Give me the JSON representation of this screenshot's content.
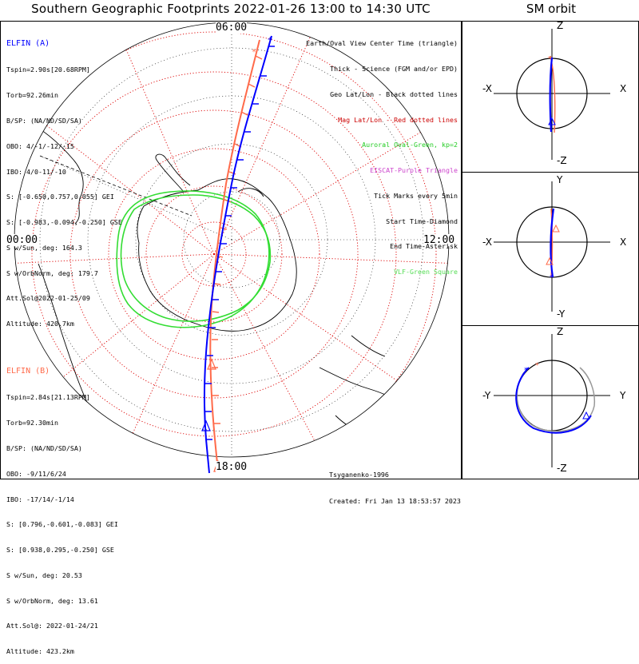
{
  "title": "Southern Geographic Footprints 2022-01-26 13:00 to 14:30 UTC",
  "sm_title": "SM orbit",
  "time_labels": {
    "top": "06:00",
    "left": "00:00",
    "right": "12:00",
    "bottom": "18:00"
  },
  "elfin_a": {
    "header": "ELFIN (A)",
    "color": "#0000ff",
    "lines": [
      "Tspin=2.90s[20.68RPM]",
      "Torb=92.26min",
      "B/SP: (NA/ND/SD/SA)",
      "OBO: 4/-1/-12/-15",
      "IBO: 4/0-11/-10",
      "S: [-0.650,0.757,0.055] GEI",
      "S: [-0.983,-0.094,-0.250] GSE",
      "S w/Sun, deg: 164.3",
      "S w/OrbNorm, deg: 179.7",
      "Att.Sol@2022-01-25/09",
      "Altitude: 420.7km"
    ]
  },
  "elfin_b": {
    "header": "ELFIN (B)",
    "color": "#ff6a4a",
    "lines": [
      "Tspin=2.84s[21.13RPM]",
      "Torb=92.30min",
      "B/SP: (NA/ND/SD/SA)",
      "OBO: -9/11/6/24",
      "IBO: -17/14/-1/14",
      "S: [0.796,-0.601,-0.083] GEI",
      "S: [0.938,0.295,-0.250] GSE",
      "S w/Sun, deg: 20.53",
      "S w/OrbNorm, deg: 13.61",
      "Att.Sol@: 2022-01-24/21",
      "Altitude: 423.2km"
    ]
  },
  "legend": [
    {
      "text": "Earth/Oval View Center Time (triangle)",
      "color": "#000000"
    },
    {
      "text": "Thick - Science (FGM and/or EPD)",
      "color": "#000000"
    },
    {
      "text": "Geo Lat/Lon - Black dotted lines",
      "color": "#000000"
    },
    {
      "text": "Mag Lat/Lon - Red dotted lines",
      "color": "#cc0000"
    },
    {
      "text": "Auroral Oval-Green, kp=2",
      "color": "#22cc22"
    },
    {
      "text": "EISCAT-Purple Triangle",
      "color": "#cc44cc"
    },
    {
      "text": "Tick Marks every 5min",
      "color": "#000000"
    },
    {
      "text": "Start Time-Diamond",
      "color": "#000000"
    },
    {
      "text": "End Time-Asterisk",
      "color": "#000000"
    },
    {
      "text": "VLF-Green Square",
      "color": "#55dd55"
    }
  ],
  "credit": {
    "author": "Tsyganenko-1996",
    "created": "Created: Fri Jan 13 18:53:57 2023"
  },
  "sm_panels": [
    {
      "top": "Z",
      "bottom": "-Z",
      "left": "-X",
      "right": "X"
    },
    {
      "top": "Y",
      "bottom": "-Y",
      "left": "-X",
      "right": "X"
    },
    {
      "top": "Z",
      "bottom": "-Z",
      "left": "-Y",
      "right": "Y"
    }
  ],
  "colors": {
    "elfin_a": "#0000ff",
    "elfin_b": "#ff6a4a",
    "oval": "#33dd33",
    "mag_grid": "#dd0000",
    "geo_grid": "#000000"
  }
}
